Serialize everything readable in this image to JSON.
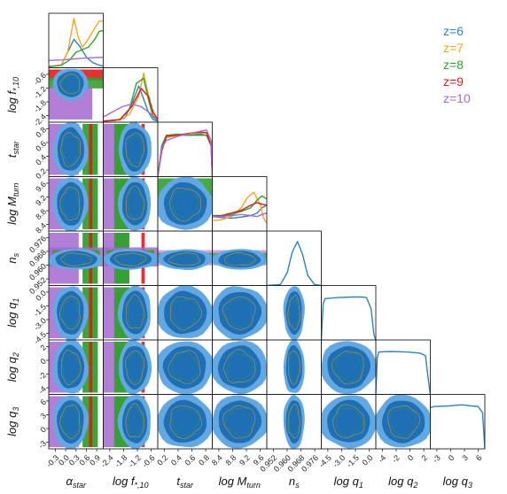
{
  "chart_data": {
    "type": "corner",
    "title": "",
    "parameters": [
      {
        "label": "α_star",
        "label_main": "α",
        "label_sub": "star",
        "ticks": [
          "-0.3",
          "0.0",
          "0.3",
          "0.6",
          "0.9"
        ],
        "range": [
          -0.3,
          1.0
        ]
      },
      {
        "label": "log f*,10",
        "label_main": "log f",
        "label_sub": "*,10",
        "ticks": [
          "-2.4",
          "-1.8",
          "-1.2",
          "-0.6"
        ],
        "range": [
          -2.7,
          -0.4
        ]
      },
      {
        "label": "t_star",
        "label_main": "t",
        "label_sub": "star",
        "ticks": [
          "0.2",
          "0.4",
          "0.6",
          "0.8"
        ],
        "range": [
          0.05,
          1.0
        ]
      },
      {
        "label": "log M_turn",
        "label_main": "log M",
        "label_sub": "turn",
        "ticks": [
          "8.4",
          "8.8",
          "9.2",
          "9.6"
        ],
        "range": [
          8.2,
          9.9
        ]
      },
      {
        "label": "n_s",
        "label_main": "n",
        "label_sub": "s",
        "ticks": [
          "0.952",
          "0.960",
          "0.968",
          "0.976"
        ],
        "range": [
          0.95,
          0.982
        ]
      },
      {
        "label": "log q1",
        "label_main": "log q",
        "label_sub": "1",
        "ticks": [
          "-4.5",
          "-3.0",
          "-1.5",
          "0.0"
        ],
        "range": [
          -4.8,
          1.0
        ]
      },
      {
        "label": "log q2",
        "label_main": "log q",
        "label_sub": "2",
        "ticks": [
          "-4",
          "-2",
          "0",
          "2"
        ],
        "range": [
          -4.3,
          3.5
        ]
      },
      {
        "label": "log q3",
        "label_main": "log q",
        "label_sub": "3",
        "ticks": [
          "-3",
          "0",
          "3",
          "6"
        ],
        "range": [
          -4.0,
          8.0
        ]
      }
    ],
    "y_ticks": {
      "1": [
        "-2.4",
        "-1.8",
        "-1.2",
        "-0.6"
      ],
      "2": [
        "0.2",
        "0.4",
        "0.6",
        "0.8"
      ],
      "3": [
        "8.4",
        "8.8",
        "9.2",
        "9.6"
      ],
      "4": [
        "0.952",
        "0.960",
        "0.968",
        "0.976"
      ],
      "5": [
        "-4.5",
        "-3.0",
        "-1.5",
        "0.0"
      ],
      "6": [
        "-4",
        "-2",
        "0",
        "2"
      ],
      "7": [
        "-3",
        "0",
        "3",
        "6"
      ]
    },
    "series": [
      {
        "name": "z=6",
        "color": "#3182bd"
      },
      {
        "name": "z=7",
        "color": "#f5a623"
      },
      {
        "name": "z=8",
        "color": "#33a02c"
      },
      {
        "name": "z=9",
        "color": "#e31a1c"
      },
      {
        "name": "z=10",
        "color": "#a569d0"
      }
    ],
    "legend_position": "top-right",
    "marginals": {
      "0": [
        {
          "series": 0,
          "x": [
            -0.3,
            0.0,
            0.15,
            0.3,
            0.45,
            0.6,
            0.75,
            0.9,
            1.0
          ],
          "y": [
            0.02,
            0.05,
            0.3,
            0.55,
            0.4,
            0.2,
            0.1,
            0.05,
            0.03
          ]
        },
        {
          "series": 1,
          "x": [
            -0.3,
            0.0,
            0.15,
            0.3,
            0.4,
            0.5,
            0.6,
            0.75,
            0.9,
            1.0
          ],
          "y": [
            0.02,
            0.05,
            0.3,
            0.95,
            0.6,
            0.4,
            0.5,
            0.7,
            0.9,
            0.9
          ]
        },
        {
          "series": 2,
          "x": [
            -0.3,
            0.0,
            0.2,
            0.35,
            0.5,
            0.65,
            0.8,
            0.9,
            1.0
          ],
          "y": [
            0.02,
            0.05,
            0.15,
            0.3,
            0.35,
            0.4,
            0.55,
            0.7,
            0.72
          ]
        },
        {
          "series": 4,
          "x": [
            -0.3,
            0.0,
            0.3,
            0.6,
            0.9,
            1.0
          ],
          "y": [
            0.14,
            0.15,
            0.17,
            0.19,
            0.2,
            0.2
          ]
        }
      ],
      "1": [
        {
          "series": 0,
          "x": [
            -2.7,
            -2.2,
            -1.8,
            -1.5,
            -1.2,
            -1.0,
            -0.8,
            -0.6,
            -0.4
          ],
          "y": [
            0.02,
            0.03,
            0.08,
            0.35,
            0.7,
            0.45,
            0.2,
            0.05,
            0.02
          ]
        },
        {
          "series": 1,
          "x": [
            -2.7,
            -2.0,
            -1.6,
            -1.2,
            -1.0,
            -0.8,
            -0.6,
            -0.4
          ],
          "y": [
            0.02,
            0.04,
            0.15,
            0.5,
            0.95,
            0.55,
            0.15,
            0.03
          ]
        },
        {
          "series": 2,
          "x": [
            -2.7,
            -2.0,
            -1.6,
            -1.3,
            -1.0,
            -0.8,
            -0.6,
            -0.4
          ],
          "y": [
            0.02,
            0.05,
            0.25,
            0.75,
            0.85,
            0.45,
            0.1,
            0.03
          ]
        },
        {
          "series": 3,
          "x": [
            -2.7,
            -2.0,
            -1.5,
            -1.1,
            -0.8,
            -0.6,
            -0.4
          ],
          "y": [
            0.02,
            0.05,
            0.3,
            0.65,
            0.5,
            0.2,
            0.05
          ]
        },
        {
          "series": 4,
          "x": [
            -2.7,
            -2.3,
            -1.9,
            -1.5,
            -1.1,
            -0.8,
            -0.5,
            -0.4
          ],
          "y": [
            0.1,
            0.2,
            0.3,
            0.35,
            0.3,
            0.2,
            0.08,
            0.05
          ]
        }
      ],
      "2": [
        {
          "series": 0,
          "x": [
            0.05,
            0.12,
            0.2,
            0.4,
            0.6,
            0.8,
            0.9,
            0.98,
            1.0
          ],
          "y": [
            0.0,
            0.6,
            0.8,
            0.8,
            0.8,
            0.8,
            0.8,
            0.6,
            0.0
          ]
        },
        {
          "series": 1,
          "x": [
            0.05,
            0.12,
            0.2,
            0.4,
            0.6,
            0.8,
            0.9,
            0.98,
            1.0
          ],
          "y": [
            0.0,
            0.5,
            0.75,
            0.8,
            0.82,
            0.84,
            0.85,
            0.6,
            0.0
          ]
        },
        {
          "series": 2,
          "x": [
            0.05,
            0.12,
            0.2,
            0.4,
            0.6,
            0.8,
            0.9,
            0.98,
            1.0
          ],
          "y": [
            0.0,
            0.55,
            0.8,
            0.82,
            0.8,
            0.82,
            0.8,
            0.6,
            0.0
          ]
        },
        {
          "series": 3,
          "x": [
            0.05,
            0.12,
            0.2,
            0.4,
            0.6,
            0.8,
            0.9,
            0.98,
            1.0
          ],
          "y": [
            0.0,
            0.5,
            0.78,
            0.8,
            0.84,
            0.86,
            0.85,
            0.6,
            0.0
          ]
        },
        {
          "series": 4,
          "x": [
            0.05,
            0.12,
            0.2,
            0.4,
            0.6,
            0.8,
            0.9,
            0.98,
            1.0
          ],
          "y": [
            0.0,
            0.55,
            0.7,
            0.78,
            0.83,
            0.88,
            0.9,
            0.7,
            0.0
          ]
        }
      ],
      "3": [
        {
          "series": 0,
          "x": [
            8.2,
            8.5,
            8.8,
            9.1,
            9.4,
            9.6,
            9.75,
            9.9
          ],
          "y": [
            0.28,
            0.26,
            0.25,
            0.27,
            0.3,
            0.35,
            0.45,
            0.5
          ]
        },
        {
          "series": 1,
          "x": [
            8.2,
            8.5,
            8.8,
            9.1,
            9.3,
            9.5,
            9.7,
            9.8,
            9.9
          ],
          "y": [
            0.2,
            0.22,
            0.28,
            0.45,
            0.65,
            0.75,
            0.5,
            0.25,
            0.15
          ]
        },
        {
          "series": 2,
          "x": [
            8.2,
            8.5,
            8.8,
            9.1,
            9.4,
            9.6,
            9.75,
            9.9
          ],
          "y": [
            0.3,
            0.3,
            0.32,
            0.38,
            0.45,
            0.6,
            0.68,
            0.62
          ]
        },
        {
          "series": 3,
          "x": [
            8.2,
            8.5,
            8.8,
            9.1,
            9.4,
            9.6,
            9.75,
            9.9
          ],
          "y": [
            0.28,
            0.3,
            0.35,
            0.4,
            0.5,
            0.55,
            0.52,
            0.5
          ]
        },
        {
          "series": 4,
          "x": [
            8.2,
            8.5,
            8.8,
            9.1,
            9.4,
            9.6,
            9.75,
            9.9
          ],
          "y": [
            0.28,
            0.28,
            0.3,
            0.32,
            0.3,
            0.28,
            0.32,
            0.35
          ]
        }
      ],
      "4": [
        {
          "series": 0,
          "x": [
            0.95,
            0.958,
            0.962,
            0.965,
            0.968,
            0.971,
            0.974,
            0.978,
            0.982
          ],
          "y": [
            0.0,
            0.02,
            0.25,
            0.65,
            0.85,
            0.6,
            0.2,
            0.02,
            0.0
          ]
        }
      ],
      "5": [
        {
          "series": 0,
          "x": [
            -4.8,
            -4.6,
            -4.4,
            -3.0,
            -1.5,
            -0.5,
            0.0,
            0.5,
            0.8,
            1.0
          ],
          "y": [
            0.0,
            0.7,
            0.8,
            0.82,
            0.83,
            0.83,
            0.82,
            0.6,
            0.1,
            0.0
          ]
        }
      ],
      "6": [
        {
          "series": 0,
          "x": [
            -4.3,
            -4.1,
            -3.9,
            -2.0,
            0.0,
            2.0,
            2.8,
            3.2,
            3.5
          ],
          "y": [
            0.0,
            0.7,
            0.82,
            0.83,
            0.82,
            0.8,
            0.75,
            0.3,
            0.0
          ]
        }
      ],
      "7": [
        {
          "series": 0,
          "x": [
            -4.0,
            -3.0,
            -2.5,
            0.0,
            3.0,
            5.0,
            6.5,
            7.5,
            8.0
          ],
          "y": [
            0.8,
            0.82,
            0.82,
            0.83,
            0.85,
            0.83,
            0.82,
            0.7,
            0.0
          ]
        }
      ]
    }
  }
}
